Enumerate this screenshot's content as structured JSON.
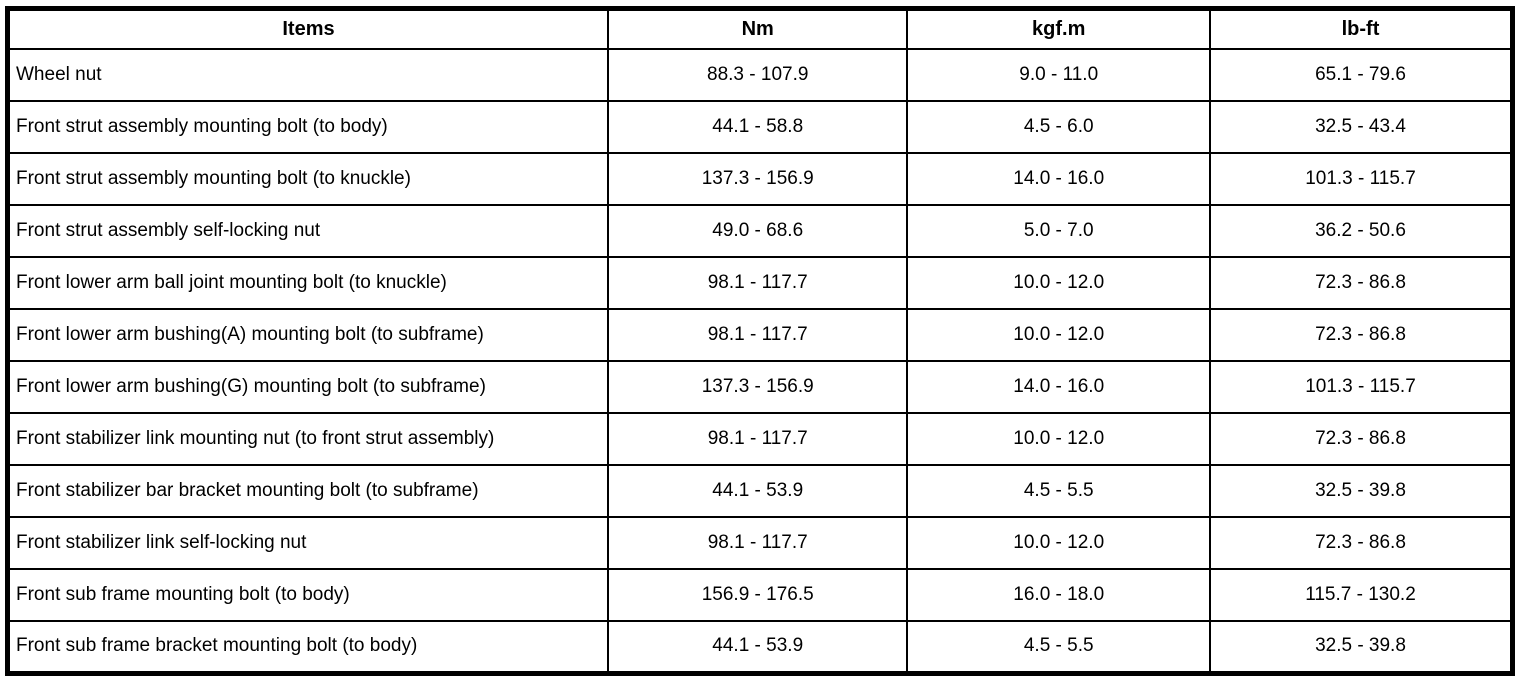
{
  "table": {
    "columns": [
      "Items",
      "Nm",
      "kgf.m",
      "lb-ft"
    ],
    "rows": [
      {
        "item": "Wheel nut",
        "nm": "88.3 - 107.9",
        "kgfm": "9.0 - 11.0",
        "lbft": "65.1 - 79.6"
      },
      {
        "item": "Front strut assembly mounting bolt (to body)",
        "nm": "44.1 - 58.8",
        "kgfm": "4.5 - 6.0",
        "lbft": "32.5 - 43.4"
      },
      {
        "item": "Front strut assembly mounting bolt (to knuckle)",
        "nm": "137.3 - 156.9",
        "kgfm": "14.0 - 16.0",
        "lbft": "101.3 - 115.7"
      },
      {
        "item": "Front strut assembly self-locking nut",
        "nm": "49.0 - 68.6",
        "kgfm": "5.0 - 7.0",
        "lbft": "36.2 - 50.6"
      },
      {
        "item": "Front lower arm ball joint mounting bolt (to knuckle)",
        "nm": "98.1 - 117.7",
        "kgfm": "10.0 - 12.0",
        "lbft": "72.3 - 86.8"
      },
      {
        "item": "Front lower arm bushing(A) mounting bolt (to subframe)",
        "nm": "98.1 - 117.7",
        "kgfm": "10.0 - 12.0",
        "lbft": "72.3 - 86.8"
      },
      {
        "item": "Front lower arm bushing(G) mounting bolt (to subframe)",
        "nm": "137.3 - 156.9",
        "kgfm": "14.0 - 16.0",
        "lbft": "101.3 - 115.7"
      },
      {
        "item": "Front stabilizer link mounting nut (to front strut assembly)",
        "nm": "98.1 - 117.7",
        "kgfm": "10.0 - 12.0",
        "lbft": "72.3 - 86.8"
      },
      {
        "item": "Front stabilizer bar bracket mounting bolt (to subframe)",
        "nm": "44.1 - 53.9",
        "kgfm": "4.5 - 5.5",
        "lbft": "32.5 - 39.8"
      },
      {
        "item": "Front stabilizer link self-locking nut",
        "nm": "98.1 - 117.7",
        "kgfm": "10.0 - 12.0",
        "lbft": "72.3 - 86.8"
      },
      {
        "item": "Front sub frame mounting bolt (to body)",
        "nm": "156.9 - 176.5",
        "kgfm": "16.0 - 18.0",
        "lbft": "115.7 - 130.2"
      },
      {
        "item": "Front sub frame bracket mounting bolt (to body)",
        "nm": "44.1 - 53.9",
        "kgfm": "4.5 - 5.5",
        "lbft": "32.5 - 39.8"
      }
    ]
  },
  "colors": {
    "border": "#000000",
    "background": "#ffffff",
    "text": "#000000"
  }
}
